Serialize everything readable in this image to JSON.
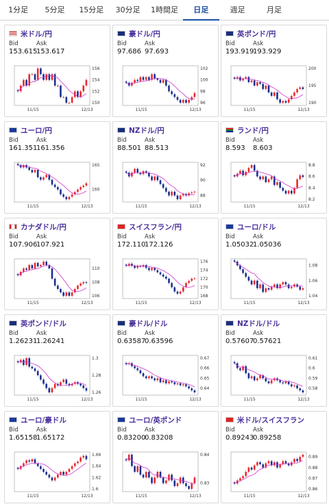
{
  "tabs": [
    {
      "label": "1分足",
      "active": false
    },
    {
      "label": "5分足",
      "active": false
    },
    {
      "label": "15分足",
      "active": false
    },
    {
      "label": "30分足",
      "active": false
    },
    {
      "label": "1時間足",
      "active": false
    },
    {
      "label": "日足",
      "active": true
    },
    {
      "label": "週足",
      "active": false
    },
    {
      "label": "月足",
      "active": false
    }
  ],
  "labels": {
    "bid": "Bid",
    "ask": "Ask"
  },
  "colors": {
    "up": "#e8292f",
    "down": "#1a2f8f",
    "ma": "#cc33cc",
    "accent": "#1a4fa3"
  },
  "pairs": [
    {
      "name": "米ドル/円",
      "flag": "us-flag-icon",
      "bid": "153.615",
      "ask": "153.617",
      "chart_data": {
        "type": "candlestick",
        "ticks": [
          "156",
          "154",
          "152",
          "150"
        ],
        "x_labels": [
          "11/15",
          "12/13"
        ],
        "close": [
          152,
          153,
          154,
          153,
          155,
          155,
          154,
          156,
          155,
          154,
          155,
          154,
          155,
          153,
          153,
          151,
          151,
          150,
          150,
          151,
          152,
          151,
          152,
          153,
          154
        ]
      }
    },
    {
      "name": "豪ドル/円",
      "flag": "au-flag-icon",
      "bid": "97.686",
      "ask": "97.693",
      "chart_data": {
        "type": "candlestick",
        "ticks": [
          "102",
          "100",
          "98",
          "96"
        ],
        "x_labels": [
          "11/15",
          "12/13"
        ],
        "close": [
          99.5,
          99,
          99.5,
          100,
          99.8,
          100.5,
          100,
          100.5,
          100,
          101,
          100.2,
          100,
          99.5,
          100,
          99,
          98,
          97.5,
          97,
          96.5,
          96,
          96.5,
          96,
          96.5,
          97,
          97.7
        ]
      }
    },
    {
      "name": "英ポンド/円",
      "flag": "uk-flag-icon",
      "bid": "193.919",
      "ask": "193.929",
      "chart_data": {
        "type": "candlestick",
        "ticks": [
          "200",
          "195",
          "190"
        ],
        "x_labels": [
          "11/15",
          "12/13"
        ],
        "close": [
          197,
          197.5,
          196.5,
          197,
          197.5,
          196,
          196.5,
          195,
          196,
          195.5,
          194,
          195,
          193,
          192,
          193,
          191,
          190,
          190.5,
          190,
          191,
          192,
          193,
          194,
          194.5,
          194
        ]
      }
    },
    {
      "name": "ユーロ/円",
      "flag": "eu-flag-icon",
      "bid": "161.351",
      "ask": "161.356",
      "chart_data": {
        "type": "candlestick",
        "ticks": [
          "165",
          "160"
        ],
        "x_labels": [
          "11/15",
          "12/13"
        ],
        "close": [
          165,
          164.5,
          165,
          164.5,
          164,
          163.5,
          164,
          162.5,
          162,
          162.5,
          163,
          162,
          161,
          160.5,
          160,
          159,
          158.5,
          158,
          158.5,
          159,
          159.5,
          160,
          160.5,
          160.8,
          161.3
        ]
      }
    },
    {
      "name": "NZドル/円",
      "flag": "nz-flag-icon",
      "bid": "88.501",
      "ask": "88.513",
      "chart_data": {
        "type": "candlestick",
        "ticks": [
          "92",
          "90",
          "88"
        ],
        "x_labels": [
          "11/15",
          "12/13"
        ],
        "close": [
          91,
          90.5,
          91,
          91.5,
          91,
          90.8,
          91.2,
          91,
          90.5,
          90,
          90.5,
          90,
          89.5,
          89,
          88.5,
          88,
          88.5,
          88,
          87.5,
          88,
          88.2,
          88,
          88.3,
          88.4,
          88.5
        ]
      }
    },
    {
      "name": "ランド/円",
      "flag": "za-flag-icon",
      "bid": "8.593",
      "ask": "8.603",
      "chart_data": {
        "type": "candlestick",
        "ticks": [
          "8.8",
          "8.6",
          "8.4",
          "8.2"
        ],
        "x_labels": [
          "11/15",
          "12/13"
        ],
        "close": [
          8.6,
          8.65,
          8.7,
          8.62,
          8.68,
          8.75,
          8.8,
          8.7,
          8.6,
          8.55,
          8.6,
          8.5,
          8.55,
          8.6,
          8.45,
          8.5,
          8.4,
          8.35,
          8.3,
          8.35,
          8.3,
          8.4,
          8.55,
          8.62,
          8.59
        ]
      }
    },
    {
      "name": "カナダドル/円",
      "flag": "ca-flag-icon",
      "bid": "107.906",
      "ask": "107.921",
      "chart_data": {
        "type": "candlestick",
        "ticks": [
          "110",
          "108",
          "106"
        ],
        "x_labels": [
          "11/15",
          "12/13"
        ],
        "close": [
          109,
          109.5,
          110,
          109.8,
          110.5,
          110,
          110.8,
          110.3,
          110.5,
          111,
          110.5,
          110,
          108.5,
          107.5,
          107,
          106.5,
          106,
          106.5,
          106,
          106.5,
          107,
          107.5,
          107.8,
          108,
          107.9
        ]
      }
    },
    {
      "name": "スイスフラン/円",
      "flag": "ch-flag-icon",
      "bid": "172.110",
      "ask": "172.126",
      "chart_data": {
        "type": "candlestick",
        "ticks": [
          "176",
          "174",
          "172",
          "170",
          "168"
        ],
        "x_labels": [
          "11/15",
          "12/13"
        ],
        "close": [
          175,
          175.5,
          175,
          174.5,
          175,
          174.8,
          175.2,
          174.5,
          174,
          174.5,
          174,
          173.5,
          173,
          172.5,
          172,
          171,
          170,
          169,
          168.5,
          169,
          170,
          171,
          171.5,
          172,
          172.1
        ]
      }
    },
    {
      "name": "ユーロ/ドル",
      "flag": "eu-flag-icon",
      "bid": "1.05032",
      "ask": "1.05036",
      "chart_data": {
        "type": "candlestick",
        "ticks": [
          "1.08",
          "1.06",
          "1.04"
        ],
        "x_labels": [
          "11/15",
          "12/13"
        ],
        "close": [
          1.085,
          1.08,
          1.075,
          1.07,
          1.065,
          1.06,
          1.055,
          1.06,
          1.05,
          1.055,
          1.045,
          1.05,
          1.048,
          1.052,
          1.055,
          1.05,
          1.055,
          1.058,
          1.055,
          1.05,
          1.052,
          1.055,
          1.052,
          1.048,
          1.05
        ]
      }
    },
    {
      "name": "英ポンド/ドル",
      "flag": "uk-flag-icon",
      "bid": "1.26231",
      "ask": "1.26241",
      "chart_data": {
        "type": "candlestick",
        "ticks": [
          "1.3",
          "1.28",
          "1.26"
        ],
        "x_labels": [
          "11/15",
          "12/13"
        ],
        "close": [
          1.295,
          1.298,
          1.292,
          1.3,
          1.29,
          1.288,
          1.285,
          1.28,
          1.275,
          1.27,
          1.265,
          1.26,
          1.265,
          1.27,
          1.268,
          1.272,
          1.275,
          1.27,
          1.268,
          1.27,
          1.272,
          1.27,
          1.268,
          1.265,
          1.262
        ]
      }
    },
    {
      "name": "豪ドル/ドル",
      "flag": "au-flag-icon",
      "bid": "0.63587",
      "ask": "0.63596",
      "chart_data": {
        "type": "candlestick",
        "ticks": [
          "0.67",
          "0.66",
          "0.65",
          "0.64"
        ],
        "x_labels": [
          "11/15",
          "12/13"
        ],
        "close": [
          0.664,
          0.665,
          0.662,
          0.66,
          0.658,
          0.655,
          0.652,
          0.65,
          0.652,
          0.65,
          0.648,
          0.65,
          0.646,
          0.648,
          0.645,
          0.647,
          0.646,
          0.644,
          0.645,
          0.643,
          0.644,
          0.642,
          0.64,
          0.638,
          0.636
        ]
      }
    },
    {
      "name": "NZドル/ドル",
      "flag": "nz-flag-icon",
      "bid": "0.57607",
      "ask": "0.57621",
      "chart_data": {
        "type": "candlestick",
        "ticks": [
          "0.61",
          "0.6",
          "0.59",
          "0.58"
        ],
        "x_labels": [
          "11/15",
          "12/13"
        ],
        "close": [
          0.605,
          0.6,
          0.598,
          0.602,
          0.595,
          0.59,
          0.592,
          0.588,
          0.59,
          0.593,
          0.59,
          0.587,
          0.585,
          0.588,
          0.59,
          0.588,
          0.586,
          0.585,
          0.587,
          0.584,
          0.582,
          0.583,
          0.58,
          0.578,
          0.576
        ]
      }
    },
    {
      "name": "ユーロ/豪ドル",
      "flag": "eu-flag-icon",
      "bid": "1.65158",
      "ask": "1.65172",
      "chart_data": {
        "type": "candlestick",
        "ticks": [
          "1.66",
          "1.64",
          "1.62",
          "1.6"
        ],
        "x_labels": [
          "11/15",
          "12/13"
        ],
        "close": [
          1.635,
          1.64,
          1.645,
          1.65,
          1.648,
          1.652,
          1.645,
          1.64,
          1.635,
          1.63,
          1.625,
          1.62,
          1.615,
          1.62,
          1.625,
          1.63,
          1.625,
          1.63,
          1.635,
          1.64,
          1.645,
          1.648,
          1.655,
          1.658,
          1.652
        ]
      }
    },
    {
      "name": "ユーロ/英ポンド",
      "flag": "eu-flag-icon",
      "bid": "0.83200",
      "ask": "0.83208",
      "chart_data": {
        "type": "candlestick",
        "ticks": [
          "0.84",
          "0.83"
        ],
        "x_labels": [
          "11/15",
          "12/13"
        ],
        "close": [
          0.838,
          0.84,
          0.836,
          0.834,
          0.836,
          0.833,
          0.832,
          0.834,
          0.832,
          0.83,
          0.832,
          0.834,
          0.832,
          0.83,
          0.831,
          0.833,
          0.831,
          0.829,
          0.83,
          0.832,
          0.83,
          0.829,
          0.828,
          0.83,
          0.832
        ]
      }
    },
    {
      "name": "米ドル/スイスフラン",
      "flag": "ch-flag-icon",
      "bid": "0.89243",
      "ask": "0.89258",
      "chart_data": {
        "type": "candlestick",
        "ticks": [
          "0.89",
          "0.88",
          "0.87",
          "0.86"
        ],
        "x_labels": [
          "11/15",
          "12/13"
        ],
        "close": [
          0.865,
          0.868,
          0.87,
          0.872,
          0.876,
          0.88,
          0.878,
          0.882,
          0.885,
          0.883,
          0.88,
          0.884,
          0.886,
          0.882,
          0.885,
          0.88,
          0.883,
          0.886,
          0.884,
          0.882,
          0.885,
          0.888,
          0.886,
          0.89,
          0.892
        ]
      }
    }
  ]
}
